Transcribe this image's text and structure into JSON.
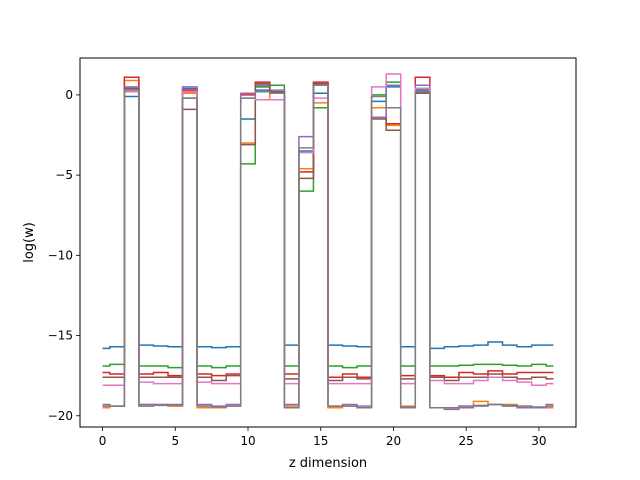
{
  "chart_data": {
    "type": "line",
    "drawstyle": "steps-mid",
    "xlabel": "z dimension",
    "ylabel": "log(w)",
    "xlim": [
      -1.55,
      32.55
    ],
    "ylim": [
      -20.7,
      2.3
    ],
    "xticks": [
      0,
      5,
      10,
      15,
      20,
      25,
      30
    ],
    "yticks": [
      -20,
      -15,
      -10,
      -5,
      0
    ],
    "ytick_labels": [
      "−20",
      "−15",
      "−10",
      "−5",
      "0"
    ],
    "grid": false,
    "x": [
      0,
      1,
      2,
      3,
      4,
      5,
      6,
      7,
      8,
      9,
      10,
      11,
      12,
      13,
      14,
      15,
      16,
      17,
      18,
      19,
      20,
      21,
      22,
      23,
      24,
      25,
      26,
      27,
      28,
      29,
      30,
      31
    ],
    "series": [
      {
        "color": "#1f77b4",
        "values": [
          -15.8,
          -15.7,
          -0.1,
          -15.6,
          -15.65,
          -15.7,
          0.4,
          -15.7,
          -15.75,
          -15.7,
          -1.5,
          0.3,
          0.1,
          -15.6,
          -3.5,
          0.1,
          -15.6,
          -15.65,
          -15.7,
          -0.4,
          0.5,
          -15.7,
          0.3,
          -15.8,
          -15.7,
          -15.65,
          -15.6,
          -15.4,
          -15.6,
          -15.7,
          -15.6,
          -15.6
        ]
      },
      {
        "color": "#ff7f0e",
        "values": [
          -19.5,
          -19.4,
          0.9,
          -19.3,
          -19.3,
          -19.4,
          0.1,
          -19.5,
          -19.5,
          -19.4,
          -3.0,
          0.5,
          -0.3,
          -19.4,
          -4.6,
          -0.5,
          -19.5,
          -19.4,
          -19.5,
          -0.8,
          -1.9,
          -19.4,
          0.2,
          -19.5,
          -19.5,
          -19.4,
          -19.1,
          -19.3,
          -19.3,
          -19.4,
          -19.5,
          -19.5
        ]
      },
      {
        "color": "#2ca02c",
        "values": [
          -16.9,
          -16.8,
          0.4,
          -16.9,
          -16.9,
          -17.0,
          -0.2,
          -16.9,
          -17.0,
          -16.9,
          -4.3,
          0.5,
          0.6,
          -16.9,
          -6.0,
          -0.8,
          -16.9,
          -17.0,
          -16.9,
          0.0,
          0.8,
          -16.9,
          0.4,
          -16.9,
          -16.9,
          -16.85,
          -16.8,
          -16.8,
          -16.85,
          -16.9,
          -16.8,
          -16.9
        ]
      },
      {
        "color": "#d62728",
        "values": [
          -17.3,
          -17.4,
          1.1,
          -17.4,
          -17.3,
          -17.5,
          0.3,
          -17.4,
          -17.5,
          -17.4,
          0.0,
          0.8,
          0.2,
          -17.4,
          -4.8,
          0.8,
          -17.6,
          -17.4,
          -17.6,
          -1.4,
          -1.8,
          -17.5,
          1.1,
          -17.5,
          -17.6,
          -17.3,
          -17.4,
          -17.2,
          -17.4,
          -17.3,
          -17.3,
          -17.3
        ]
      },
      {
        "color": "#9467bd",
        "values": [
          -19.3,
          -19.4,
          0.5,
          -19.3,
          -19.3,
          -19.3,
          0.5,
          -19.3,
          -19.4,
          -19.3,
          0.1,
          0.6,
          0.3,
          -19.3,
          -2.6,
          0.7,
          -19.4,
          -19.3,
          -19.4,
          -1.4,
          0.6,
          -19.5,
          0.6,
          -19.5,
          -19.6,
          -19.5,
          -19.4,
          -19.3,
          -19.4,
          -19.5,
          -19.5,
          -19.3
        ]
      },
      {
        "color": "#8c564b",
        "values": [
          -17.6,
          -17.6,
          0.4,
          -17.6,
          -17.6,
          -17.6,
          -0.9,
          -17.6,
          -17.8,
          -17.5,
          -3.1,
          0.7,
          0.2,
          -17.7,
          -5.2,
          0.7,
          -17.8,
          -17.6,
          -17.7,
          -1.5,
          -2.2,
          -17.7,
          0.1,
          -17.6,
          -17.8,
          -17.6,
          -17.6,
          -17.4,
          -17.6,
          -17.7,
          -17.6,
          -17.7
        ]
      },
      {
        "color": "#e377c2",
        "values": [
          -18.1,
          -18.1,
          0.2,
          -17.9,
          -18.0,
          -18.0,
          0.2,
          -17.9,
          -18.0,
          -18.0,
          -0.2,
          -0.3,
          -0.3,
          -18.0,
          -3.6,
          -0.2,
          -18.0,
          -18.0,
          -18.0,
          0.5,
          1.3,
          -18.0,
          0.4,
          -17.8,
          -18.0,
          -18.0,
          -17.8,
          -17.6,
          -17.8,
          -17.9,
          -18.1,
          -18.0
        ]
      },
      {
        "color": "#7f7f7f",
        "values": [
          -19.4,
          -19.4,
          0.3,
          -19.4,
          -19.35,
          -19.35,
          -0.2,
          -19.4,
          -19.45,
          -19.4,
          -0.2,
          0.2,
          0.1,
          -19.5,
          -3.3,
          0.6,
          -19.4,
          -19.4,
          -19.5,
          -0.1,
          -0.8,
          -19.45,
          0.2,
          -19.5,
          -19.5,
          -19.4,
          -19.35,
          -19.3,
          -19.35,
          -19.4,
          -19.45,
          -19.4
        ]
      }
    ]
  }
}
